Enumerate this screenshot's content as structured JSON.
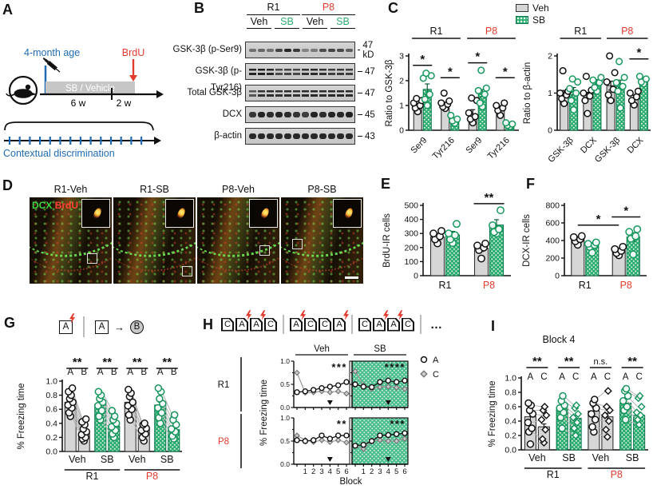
{
  "colors": {
    "green": "#2fae72",
    "green_dark": "#0c7a4d",
    "red": "#e23b2e",
    "blue": "#1f6cb4",
    "gray_bar": "#d6d6d6"
  },
  "panelA": {
    "label": "A",
    "age": "4-month age",
    "brdu": "BrdU",
    "bar": "SB / Vehicle",
    "w1": "6 w",
    "w2": "2 w",
    "timeline": "Contextual discrimination"
  },
  "panelB": {
    "label": "B",
    "groups": [
      {
        "label": "R1",
        "color": "black"
      },
      {
        "label": "P8",
        "color": "red"
      }
    ],
    "lanes": [
      "Veh",
      "SB",
      "Veh",
      "SB"
    ],
    "rows": [
      {
        "name": "GSK-3β (p-Ser9)",
        "kd": "47 kD",
        "style": "single-light",
        "bands": [
          0.5,
          0.55,
          0.5,
          0.75,
          0.9,
          0.8,
          0.4,
          0.45,
          0.7,
          0.75,
          0.72,
          0.6
        ]
      },
      {
        "name": "GSK-3β (p-Tyr216)",
        "kd": "47",
        "style": "double",
        "bands": [
          0.92,
          0.95,
          0.9,
          0.72,
          0.75,
          0.72,
          0.85,
          0.88,
          0.85,
          0.78,
          0.8,
          0.78
        ]
      },
      {
        "name": "Total GSK-3β",
        "kd": "47",
        "style": "double",
        "bands": [
          0.65,
          0.85,
          0.88,
          0.85,
          0.88,
          0.85,
          0.88,
          0.9,
          0.88,
          0.9,
          0.9,
          0.88
        ]
      },
      {
        "name": "DCX",
        "kd": "45",
        "style": "single-heavy",
        "bands": [
          0.82,
          0.92,
          0.88,
          0.92,
          0.88,
          0.85,
          0.78,
          0.92,
          0.88,
          0.92,
          0.9,
          0.95
        ]
      },
      {
        "name": "β-actin",
        "kd": "43",
        "style": "single-heavy",
        "bands": [
          0.9,
          0.9,
          0.9,
          0.9,
          0.9,
          0.9,
          0.9,
          0.9,
          0.9,
          0.9,
          0.9,
          0.9
        ]
      }
    ]
  },
  "panelC": {
    "label": "C",
    "legend": [
      {
        "label": "Veh"
      },
      {
        "label": "SB"
      }
    ],
    "left": {
      "ylabel": "Ratio to GSK-3β",
      "ylim": [
        0,
        3
      ],
      "yticks": [
        0,
        1,
        2,
        3
      ],
      "categories": [
        "Ser9",
        "Tyr216",
        "Ser9",
        "Tyr216"
      ],
      "group_headers": [
        {
          "label": "R1",
          "span": [
            0,
            1
          ],
          "color": "black"
        },
        {
          "label": "P8",
          "span": [
            2,
            3
          ],
          "color": "red"
        }
      ],
      "veh": {
        "values": [
          1.0,
          1.05,
          0.65,
          0.88
        ],
        "err": [
          0.08,
          0.06,
          0.18,
          0.08
        ],
        "points": [
          [
            0.75,
            0.9,
            1.0,
            1.1,
            1.2,
            1.28
          ],
          [
            0.88,
            0.95,
            1.05,
            1.1,
            1.18,
            1.5
          ],
          [
            0.3,
            0.45,
            0.55,
            0.7,
            1.2,
            1.3
          ],
          [
            0.6,
            0.8,
            0.9,
            1.0,
            1.1
          ]
        ]
      },
      "sb": {
        "values": [
          1.65,
          0.42,
          1.5,
          0.22
        ],
        "err": [
          0.22,
          0.06,
          0.14,
          0.04
        ],
        "points": [
          [
            1.0,
            1.25,
            1.45,
            2.1,
            2.2,
            2.3
          ],
          [
            0.28,
            0.38,
            0.45,
            0.6
          ],
          [
            0.95,
            1.1,
            1.45,
            1.6,
            1.7,
            2.42
          ],
          [
            0.15,
            0.2,
            0.25,
            0.3
          ]
        ]
      },
      "sigs": [
        {
          "cat": 0,
          "y": 2.62,
          "label": "*"
        },
        {
          "cat": 1,
          "y": 2.12,
          "label": "*"
        },
        {
          "cat": 2,
          "y": 2.72,
          "label": "*"
        },
        {
          "cat": 3,
          "y": 2.12,
          "label": "*"
        }
      ]
    },
    "right": {
      "ylabel": "Ratio to β-actin",
      "ylim": [
        0,
        2
      ],
      "yticks": [
        0,
        1,
        2
      ],
      "categories": [
        "GSK-3β",
        "DCX",
        "GSK-3β",
        "DCX"
      ],
      "group_headers": [
        {
          "label": "R1",
          "span": [
            0,
            1
          ],
          "color": "black"
        },
        {
          "label": "P8",
          "span": [
            2,
            3
          ],
          "color": "red"
        }
      ],
      "veh": {
        "values": [
          1.0,
          0.95,
          1.2,
          0.88
        ],
        "err": [
          0.07,
          0.07,
          0.12,
          0.06
        ],
        "points": [
          [
            0.72,
            0.85,
            0.95,
            1.0,
            1.05,
            1.6
          ],
          [
            0.45,
            0.8,
            0.92,
            1.0,
            1.08,
            1.45
          ],
          [
            0.8,
            0.95,
            1.1,
            1.3,
            1.55,
            2.0
          ],
          [
            0.68,
            0.8,
            0.9,
            1.0,
            1.05
          ]
        ]
      },
      "sb": {
        "values": [
          1.05,
          1.3,
          1.25,
          1.35
        ],
        "err": [
          0.1,
          0.06,
          0.1,
          0.05
        ],
        "points": [
          [
            0.55,
            0.8,
            1.0,
            1.12,
            1.3,
            1.38
          ],
          [
            1.05,
            1.15,
            1.28,
            1.35,
            1.42
          ],
          [
            0.6,
            1.05,
            1.18,
            1.28,
            1.42,
            1.85
          ],
          [
            1.25,
            1.3,
            1.38,
            1.45
          ]
        ]
      },
      "sigs": [
        {
          "cat": 3,
          "y": 1.92,
          "label": "*"
        }
      ]
    }
  },
  "panelD": {
    "label": "D",
    "titles": [
      "R1-Veh",
      "R1-SB",
      "P8-Veh",
      "P8-SB"
    ],
    "channels": [
      {
        "label": "DCX",
        "color": "#3ed43e"
      },
      {
        "label": "BrdU",
        "color": "#ff4433"
      }
    ]
  },
  "panelE": {
    "label": "E",
    "ylabel": "BrdU-IR cells",
    "ylim": [
      0,
      500
    ],
    "yticks": [
      0,
      100,
      200,
      300,
      400,
      500
    ],
    "categories": [
      {
        "label": "R1",
        "color": "black"
      },
      {
        "label": "P8",
        "color": "red"
      }
    ],
    "veh": {
      "values": [
        275,
        195
      ],
      "err": [
        18,
        22
      ],
      "points": [
        [
          230,
          258,
          280,
          300,
          318
        ],
        [
          122,
          182,
          200,
          214,
          228
        ]
      ]
    },
    "sb": {
      "values": [
        290,
        360
      ],
      "err": [
        25,
        38
      ],
      "points": [
        [
          232,
          258,
          288,
          300,
          368
        ],
        [
          300,
          310,
          330,
          358,
          465
        ]
      ]
    },
    "sigs": [
      {
        "cat": 1,
        "y": 512,
        "label": "**"
      }
    ]
  },
  "panelF": {
    "label": "F",
    "ylabel": "DCX-IR cells",
    "ylim": [
      0,
      800
    ],
    "yticks": [
      0,
      200,
      400,
      600,
      800
    ],
    "categories": [
      {
        "label": "R1",
        "color": "black"
      },
      {
        "label": "P8",
        "color": "red"
      }
    ],
    "veh": {
      "values": [
        420,
        285
      ],
      "err": [
        22,
        20
      ],
      "points": [
        [
          352,
          392,
          415,
          438,
          450
        ],
        [
          232,
          258,
          282,
          302,
          328
        ]
      ]
    },
    "sb": {
      "values": [
        345,
        440
      ],
      "err": [
        25,
        48
      ],
      "points": [
        [
          262,
          328,
          348,
          362,
          378
        ],
        [
          242,
          420,
          450,
          498,
          528
        ]
      ]
    },
    "sigs": [
      {
        "cat": 1,
        "y": 668,
        "label": "*"
      },
      {
        "from": [
          0,
          0
        ],
        "to": [
          1,
          0
        ],
        "y": 575,
        "label": "*"
      }
    ]
  },
  "panelG": {
    "label": "G",
    "icons": {
      "a1": "A",
      "a2": "A",
      "b": "B",
      "arrow": "→"
    },
    "ylabel": "% Freezing time",
    "yticks": [
      0,
      0.2,
      0.4,
      0.6,
      0.8,
      1
    ],
    "bar_labels": [
      "A",
      "B"
    ],
    "groups": [
      {
        "cond": "Veh",
        "color": "gray",
        "sig": "**",
        "values": [
          0.7,
          0.25
        ],
        "errA": 0.04,
        "errB": 0.03,
        "pointsA": [
          0.5,
          0.55,
          0.62,
          0.66,
          0.7,
          0.75,
          0.8,
          0.85,
          0.9
        ],
        "pointsB": [
          0.15,
          0.18,
          0.2,
          0.24,
          0.28,
          0.32,
          0.38,
          0.42,
          0.46
        ]
      },
      {
        "cond": "SB",
        "color": "green",
        "sig": "**",
        "values": [
          0.67,
          0.36
        ],
        "errA": 0.04,
        "errB": 0.04,
        "pointsA": [
          0.45,
          0.5,
          0.58,
          0.65,
          0.7,
          0.75,
          0.8,
          0.85
        ],
        "pointsB": [
          0.2,
          0.25,
          0.3,
          0.35,
          0.4,
          0.45,
          0.5,
          0.58
        ]
      },
      {
        "cond": "Veh",
        "color": "gray",
        "sig": "**",
        "values": [
          0.7,
          0.3
        ],
        "errA": 0.04,
        "errB": 0.03,
        "pointsA": [
          0.45,
          0.52,
          0.6,
          0.65,
          0.7,
          0.78,
          0.83,
          0.88
        ],
        "pointsB": [
          0.15,
          0.2,
          0.25,
          0.3,
          0.33,
          0.38,
          0.4
        ]
      },
      {
        "cond": "SB",
        "color": "green",
        "sig": "**",
        "values": [
          0.66,
          0.31
        ],
        "errA": 0.04,
        "errB": 0.04,
        "pointsA": [
          0.4,
          0.48,
          0.55,
          0.62,
          0.68,
          0.75,
          0.85,
          0.9
        ],
        "pointsB": [
          0.18,
          0.22,
          0.28,
          0.32,
          0.38,
          0.45,
          0.52
        ]
      }
    ],
    "supers": [
      {
        "label": "R1",
        "color": "black"
      },
      {
        "label": "P8",
        "color": "red"
      }
    ]
  },
  "panelH": {
    "label": "H",
    "sequences": [
      [
        "C",
        "A!",
        "A!",
        "C"
      ],
      [
        "A!",
        "C",
        "C",
        "A!"
      ],
      [
        "C",
        "A!",
        "A!",
        "C"
      ]
    ],
    "ellipsis": "…",
    "col_headers": [
      "Veh",
      "SB"
    ],
    "row_headers": [
      {
        "label": "R1",
        "color": "black"
      },
      {
        "label": "P8",
        "color": "red"
      }
    ],
    "ylabel": "% Freezing time",
    "xlabel": "Block",
    "xticks": [
      "1",
      "2",
      "3",
      "4",
      "5",
      "6"
    ],
    "marker_block": 4,
    "legend": [
      {
        "label": "A"
      },
      {
        "label": "C"
      }
    ],
    "subplots": [
      {
        "row": "R1",
        "col": "Veh",
        "sig": "***",
        "A": [
          0.33,
          0.35,
          0.38,
          0.42,
          0.45,
          0.48,
          0.55
        ],
        "C": [
          0.75,
          0.32,
          0.33,
          0.35,
          0.33,
          0.35,
          0.3
        ]
      },
      {
        "row": "R1",
        "col": "SB",
        "sig": "****",
        "A": [
          0.5,
          0.45,
          0.44,
          0.55,
          0.58,
          0.55,
          0.58
        ],
        "C": [
          0.78,
          0.48,
          0.4,
          0.44,
          0.45,
          0.43,
          0.4
        ]
      },
      {
        "row": "P8",
        "col": "Veh",
        "sig": "**",
        "A": [
          0.52,
          0.5,
          0.52,
          0.62,
          0.55,
          0.62,
          0.62
        ],
        "C": [
          0.62,
          0.52,
          0.48,
          0.52,
          0.48,
          0.52,
          0.47
        ]
      },
      {
        "row": "P8",
        "col": "SB",
        "sig": "***",
        "A": [
          0.4,
          0.42,
          0.5,
          0.62,
          0.63,
          0.65,
          0.67
        ],
        "C": [
          0.4,
          0.33,
          0.5,
          0.52,
          0.5,
          0.5,
          0.55
        ]
      }
    ]
  },
  "panelI": {
    "label": "I",
    "title": "Block 4",
    "ylabel": "% Freezing time",
    "yticks": [
      0,
      0.2,
      0.4,
      0.6,
      0.8,
      1
    ],
    "bar_labels": [
      "A",
      "C"
    ],
    "groups": [
      {
        "cond": "Veh",
        "color": "gray",
        "sig": "**",
        "values": [
          0.46,
          0.32
        ],
        "errA": 0.05,
        "errB": 0.04,
        "pointsA": [
          0.08,
          0.25,
          0.3,
          0.38,
          0.5,
          0.55,
          0.62,
          0.65
        ],
        "pointsB": [
          0.1,
          0.15,
          0.28,
          0.42,
          0.48,
          0.55,
          0.6
        ]
      },
      {
        "cond": "SB",
        "color": "green",
        "sig": "**",
        "values": [
          0.58,
          0.44
        ],
        "errA": 0.04,
        "errB": 0.04,
        "pointsA": [
          0.3,
          0.45,
          0.52,
          0.58,
          0.62,
          0.68,
          0.75
        ],
        "pointsB": [
          0.2,
          0.3,
          0.38,
          0.45,
          0.5,
          0.58,
          0.62
        ]
      },
      {
        "cond": "Veh",
        "color": "gray",
        "sig": "n.s.",
        "values": [
          0.54,
          0.46
        ],
        "errA": 0.05,
        "errB": 0.05,
        "pointsA": [
          0.25,
          0.32,
          0.42,
          0.5,
          0.58,
          0.65,
          0.7
        ],
        "pointsB": [
          0.18,
          0.28,
          0.4,
          0.48,
          0.55,
          0.6,
          0.82
        ]
      },
      {
        "cond": "SB",
        "color": "green",
        "sig": "**",
        "values": [
          0.65,
          0.48
        ],
        "errA": 0.05,
        "errB": 0.04,
        "pointsA": [
          0.42,
          0.55,
          0.6,
          0.68,
          0.75,
          0.82,
          0.85
        ],
        "pointsB": [
          0.35,
          0.42,
          0.48,
          0.52,
          0.6,
          0.72,
          0.75
        ]
      }
    ],
    "supers": [
      {
        "label": "R1",
        "color": "black"
      },
      {
        "label": "P8",
        "color": "red"
      }
    ]
  }
}
